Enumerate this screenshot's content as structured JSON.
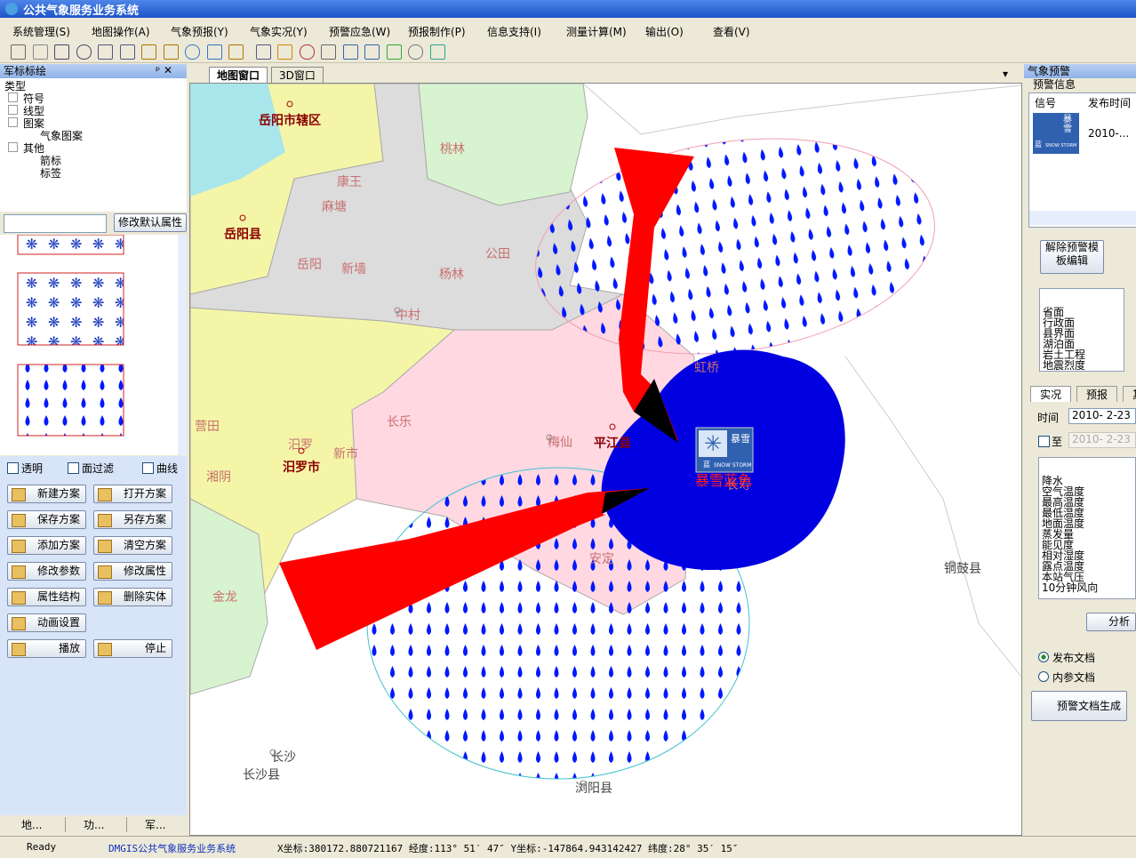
{
  "window": {
    "title": "公共气象服务业务系统"
  },
  "menu": [
    "系统管理(S)",
    "地图操作(A)",
    "气象预报(Y)",
    "气象实况(Y)",
    "预警应急(W)",
    "预报制作(P)",
    "信息支持(I)",
    "测量计算(M)",
    "输出(O)",
    "查看(V)"
  ],
  "icon": {
    "title": "暴雪",
    "en": "SNOW STORM",
    "level": "蓝"
  },
  "left_panel": {
    "title": "军标标绘",
    "tree_header": "类型",
    "tree": [
      "符号",
      "线型",
      "图案",
      "气象图案",
      "其他",
      "箭标",
      "标签"
    ],
    "edit_button": "修改默认属性",
    "options": [
      "透明",
      "面过滤",
      "曲线"
    ],
    "buttons": [
      "新建方案",
      "打开方案",
      "保存方案",
      "另存方案",
      "添加方案",
      "清空方案",
      "修改参数",
      "修改属性",
      "属性结构",
      "删除实体",
      "动画设置",
      "播放",
      "停止"
    ],
    "tabs": [
      "地...",
      "功...",
      "军..."
    ]
  },
  "map": {
    "tabs": [
      "地图窗口",
      "3D窗口"
    ],
    "places": [
      "岳阳市辖区",
      "桃林",
      "康王",
      "麻塘",
      "岳阳县",
      "岳阳",
      "新墙",
      "杨林",
      "公田",
      "中村",
      "虹桥",
      "长乐",
      "梅仙",
      "平江县",
      "营田",
      "汨罗",
      "汨罗市",
      "新市",
      "湘阴",
      "长寿",
      "安定",
      "金龙",
      "铜鼓县",
      "长沙",
      "长沙县",
      "浏阳县"
    ],
    "warning_label": "暴雪蓝色"
  },
  "right_panel": {
    "title": "气象预警",
    "section": "预警信息",
    "headers": [
      "信号",
      "发布时间"
    ],
    "row_time": "2010-...",
    "template_button": "解除预警模板编辑",
    "layers": [
      "省面",
      "行政面",
      "县界面",
      "湖泊面",
      "岩土工程",
      "地震烈度"
    ],
    "tabs": [
      "实况",
      "预报",
      "其"
    ],
    "time_label": "时间",
    "time_from": "2010- 2-23",
    "to_label": "至",
    "time_to": "2010- 2-23",
    "elements": [
      "降水",
      "空气温度",
      "最高温度",
      "最低温度",
      "地面温度",
      "蒸发量",
      "能见度",
      "相对湿度",
      "露点温度",
      "本站气压",
      "10分钟风向"
    ],
    "analyze_button": "分析",
    "docs": [
      "发布文档",
      "内参文档"
    ],
    "generate_button": "预警文档生成"
  },
  "status_bar": {
    "ready": "Ready",
    "app": "DMGIS公共气象服务业务系统",
    "coords": "X坐标:380172.880721167 经度:113° 51′ 47″ Y坐标:-147864.943142427 纬度:28° 35′ 15″"
  }
}
